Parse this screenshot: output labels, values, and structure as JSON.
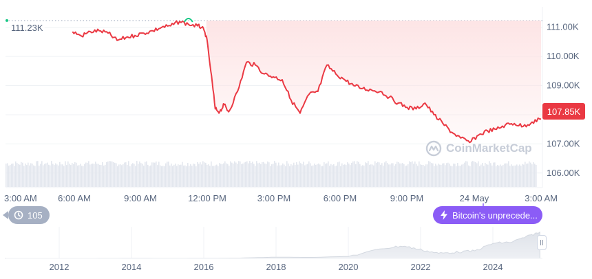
{
  "chart_data": [
    {
      "type": "line",
      "title": "",
      "xlabel": "",
      "ylabel": "",
      "ylim": [
        105.5,
        111.7
      ],
      "x_ticks": [
        "3:00 AM",
        "6:00 AM",
        "9:00 AM",
        "12:00 PM",
        "3:00 PM",
        "6:00 PM",
        "9:00 PM",
        "24 May",
        "3:00 AM"
      ],
      "y_ticks": [
        "111.00K",
        "110.00K",
        "109.00K",
        "108.00K",
        "107.00K",
        "106.00K"
      ],
      "reference_line": {
        "label": "111.23K",
        "value": 111.23
      },
      "current_price": {
        "label": "107.85K",
        "value": 107.85
      },
      "grid": true,
      "colors": {
        "line": "#ea3943",
        "peak": "#16c784",
        "fill": "#fde3e4",
        "badge_news": "#8b5cf6"
      },
      "series": [
        {
          "x": [
            "6:00",
            "6:24",
            "6:48",
            "7:12",
            "7:36",
            "8:00",
            "8:24",
            "8:48",
            "9:12",
            "9:36",
            "10:00",
            "10:24",
            "10:48",
            "11:12",
            "11:36",
            "11:48",
            "12:00",
            "12:12",
            "12:24",
            "12:36",
            "12:48",
            "13:00",
            "13:24",
            "13:48",
            "14:12",
            "14:36",
            "15:00",
            "15:24",
            "15:48",
            "16:12",
            "16:36",
            "17:00",
            "17:24",
            "17:48",
            "18:12",
            "18:36",
            "19:00",
            "19:24",
            "19:48",
            "20:12",
            "20:36",
            "21:00",
            "21:24",
            "21:48",
            "22:12",
            "22:36",
            "23:00",
            "23:24",
            "23:48",
            "00:12",
            "00:36",
            "01:00",
            "01:24",
            "01:48",
            "02:12",
            "02:36",
            "03:00"
          ],
          "values": [
            110.85,
            110.7,
            110.85,
            110.88,
            110.8,
            110.55,
            110.65,
            110.72,
            110.8,
            110.88,
            111.0,
            111.05,
            111.2,
            111.1,
            111.05,
            111.0,
            110.7,
            109.5,
            108.2,
            108.1,
            108.35,
            108.1,
            108.8,
            109.8,
            109.7,
            109.4,
            109.3,
            109.2,
            108.5,
            108.05,
            108.7,
            108.8,
            109.7,
            109.4,
            109.2,
            109.0,
            108.9,
            108.85,
            108.8,
            108.6,
            108.4,
            108.25,
            108.2,
            108.4,
            108.0,
            107.7,
            107.4,
            107.2,
            107.05,
            107.3,
            107.45,
            107.5,
            107.65,
            107.7,
            107.6,
            107.75,
            107.85
          ]
        }
      ]
    },
    {
      "type": "area",
      "title": "",
      "x_ticks": [
        "2012",
        "2014",
        "2016",
        "2018",
        "2020",
        "2022",
        "2024"
      ],
      "series": [
        {
          "x": [
            2010.5,
            2011,
            2012,
            2013,
            2014,
            2015,
            2016,
            2017,
            2018,
            2019,
            2020,
            2021,
            2021.5,
            2022,
            2022.5,
            2023,
            2023.5,
            2024,
            2024.5,
            2025,
            2025.3
          ],
          "values": [
            0,
            0,
            0,
            0.1,
            0.6,
            0.3,
            0.5,
            1.5,
            5,
            4,
            8,
            40,
            50,
            35,
            20,
            25,
            30,
            60,
            65,
            90,
            105
          ]
        }
      ]
    }
  ],
  "labels": {
    "history_count": "105",
    "news_title": "Bitcoin's unprecede...",
    "watermark": "CoinMarketCap",
    "price_tag": "107.85K",
    "ref_label": "111.23K"
  },
  "icons": {
    "history": "history-icon",
    "news": "lightning-icon",
    "logo": "coinmarketcap-logo-icon",
    "handle": "drag-handle-icon"
  }
}
